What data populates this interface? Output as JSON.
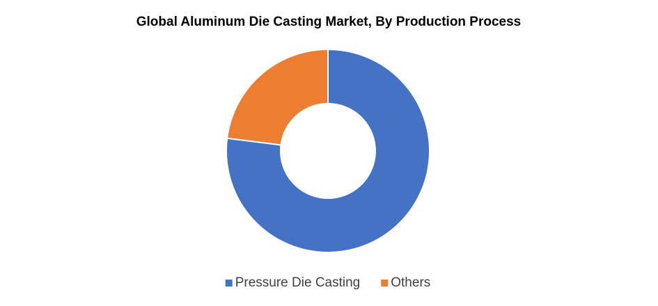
{
  "chart_data": {
    "type": "donut",
    "title": "Global Aluminum Die Casting Market, By Production Process",
    "categories": [
      "Pressure Die Casting",
      "Others"
    ],
    "values": [
      77,
      23
    ],
    "colors": [
      "#4472c4",
      "#ed7d31"
    ],
    "legend": "bottom"
  }
}
